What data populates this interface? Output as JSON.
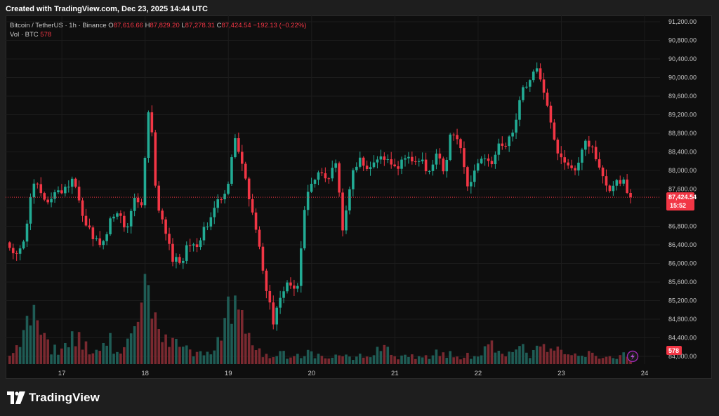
{
  "header": {
    "created_text": "Created with TradingView.com, Dec 23, 2025 14:44 UTC"
  },
  "legend": {
    "symbol": "Bitcoin / TetherUS · 1h · Binance",
    "o_label": "O",
    "o_value": "87,616.66",
    "h_label": "H",
    "h_value": "87,829.20",
    "l_label": "L",
    "l_value": "87,278.31",
    "c_label": "C",
    "c_value": "87,424.54",
    "change": "−192.13 (−0.22%)",
    "vol_label": "Vol · BTC",
    "vol_value": "578"
  },
  "price_tag": {
    "price": "87,424.54",
    "countdown": "15:52"
  },
  "volume_tag": "578",
  "footer": {
    "brand": "TradingView"
  },
  "colors": {
    "up": "#22ab94",
    "down": "#f23645",
    "vol_up": "#1f5c55",
    "vol_down": "#7a2930",
    "background": "#0e0e0e"
  },
  "icons": {
    "brand": "tradingview-logo-icon",
    "lightning": "lightning-icon"
  },
  "chart_data": {
    "type": "candlestick",
    "interval": "1h",
    "y_ticks": [
      84000,
      84400,
      84800,
      85200,
      85600,
      86000,
      86400,
      86800,
      87200,
      87600,
      88000,
      88400,
      88800,
      89200,
      89600,
      90000,
      90400,
      90800,
      91200
    ],
    "y_tick_labels": [
      "84,000.00",
      "84,400.00",
      "84,800.00",
      "85,200.00",
      "85,600.00",
      "86,000.00",
      "86,400.00",
      "86,800.00",
      "",
      "87,600.00",
      "88,000.00",
      "88,400.00",
      "88,800.00",
      "89,200.00",
      "89,600.00",
      "90,000.00",
      "90,400.00",
      "90,800.00",
      "91,200.00"
    ],
    "x_ticks": [
      {
        "label": "17",
        "index": 15
      },
      {
        "label": "18",
        "index": 39
      },
      {
        "label": "19",
        "index": 63
      },
      {
        "label": "20",
        "index": 87
      },
      {
        "label": "21",
        "index": 111
      },
      {
        "label": "22",
        "index": 135
      },
      {
        "label": "23",
        "index": 159
      },
      {
        "label": "24",
        "index": 183
      }
    ],
    "ylim": [
      83900,
      91300
    ],
    "last_price": 87424.54,
    "price_anchors": [
      86400,
      86100,
      86600,
      87800,
      87600,
      87200,
      87700,
      87500,
      87900,
      87300,
      86800,
      86500,
      86400,
      86900,
      87200,
      86600,
      87400,
      87200,
      89500,
      87200,
      86700,
      86100,
      86000,
      86400,
      86300,
      86700,
      87000,
      87400,
      87600,
      88700,
      88200,
      87300,
      86600,
      85500,
      84700,
      85400,
      85600,
      85300,
      87200,
      87800,
      88000,
      87800,
      88200,
      86600,
      87900,
      88200,
      88100,
      88200,
      88300,
      88200,
      88100,
      88300,
      88200,
      88200,
      88000,
      88300,
      88000,
      88900,
      88500,
      87700,
      88000,
      88300,
      88100,
      88600,
      88500,
      88900,
      89700,
      90000,
      90300,
      89600,
      88700,
      88300,
      88100,
      87900,
      88700,
      88500,
      88000,
      87600,
      87700,
      87800,
      87400
    ],
    "volume_anchors": [
      150,
      180,
      520,
      400,
      200,
      140,
      300,
      250,
      160,
      120,
      260,
      140,
      220,
      420,
      1000,
      380,
      240,
      190,
      130,
      160,
      90,
      320,
      660,
      820,
      200,
      120,
      90,
      170,
      60,
      90,
      140,
      70,
      70,
      80,
      75,
      85,
      60,
      220,
      120,
      90,
      130,
      60,
      100,
      140,
      120,
      90,
      90,
      100,
      300,
      100,
      120,
      200,
      110,
      180,
      170,
      140,
      90,
      120,
      110,
      60,
      70,
      120,
      90
    ]
  }
}
